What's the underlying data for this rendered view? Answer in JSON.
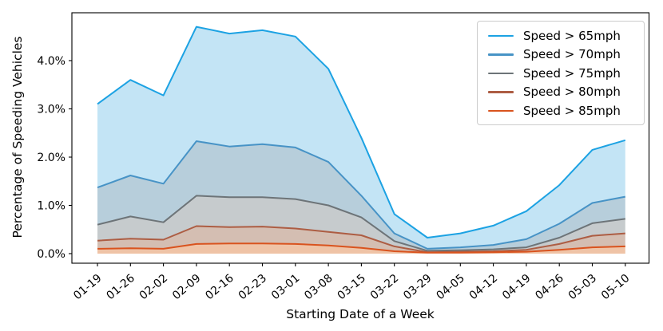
{
  "figure": {
    "background": "#ffffff",
    "axis_color": "#000000",
    "legend_border_color": "#cccccc"
  },
  "chart_data": {
    "type": "area",
    "title": "",
    "xlabel": "Starting Date of a Week",
    "ylabel": "Percentage of Speeding Vehicles",
    "categories": [
      "01-19",
      "01-26",
      "02-02",
      "02-09",
      "02-16",
      "02-23",
      "03-01",
      "03-08",
      "03-15",
      "03-22",
      "03-29",
      "04-05",
      "04-12",
      "04-19",
      "04-26",
      "05-03",
      "05-10"
    ],
    "series": [
      {
        "name": "Speed > 65mph",
        "color": "#1ca2e3",
        "band_fill": "#c3e4f5",
        "values": [
          3.1,
          3.6,
          3.28,
          4.7,
          4.56,
          4.63,
          4.5,
          3.83,
          2.4,
          0.82,
          0.33,
          0.42,
          0.58,
          0.88,
          1.42,
          2.15,
          2.35
        ]
      },
      {
        "name": "Speed > 70mph",
        "color": "#4793c6",
        "band_fill": "#b7cedb",
        "values": [
          1.37,
          1.62,
          1.45,
          2.33,
          2.22,
          2.27,
          2.2,
          1.9,
          1.2,
          0.42,
          0.1,
          0.13,
          0.18,
          0.3,
          0.62,
          1.05,
          1.18
        ]
      },
      {
        "name": "Speed > 75mph",
        "color": "#6d7478",
        "band_fill": "#c6cbcd",
        "values": [
          0.6,
          0.77,
          0.65,
          1.2,
          1.17,
          1.17,
          1.13,
          1.0,
          0.75,
          0.26,
          0.06,
          0.07,
          0.09,
          0.13,
          0.33,
          0.63,
          0.72
        ]
      },
      {
        "name": "Speed > 80mph",
        "color": "#ad5d43",
        "band_fill": "#d4beb2",
        "values": [
          0.27,
          0.31,
          0.29,
          0.57,
          0.55,
          0.56,
          0.52,
          0.45,
          0.38,
          0.15,
          0.03,
          0.04,
          0.05,
          0.08,
          0.2,
          0.37,
          0.42
        ]
      },
      {
        "name": "Speed > 85mph",
        "color": "#d9531e",
        "band_fill": "#efc3a6",
        "values": [
          0.1,
          0.11,
          0.1,
          0.2,
          0.21,
          0.21,
          0.2,
          0.17,
          0.12,
          0.05,
          0.02,
          0.02,
          0.03,
          0.04,
          0.08,
          0.13,
          0.15
        ]
      }
    ],
    "ytick_values": [
      0,
      1,
      2,
      3,
      4
    ],
    "ytick_labels": [
      "0.0%",
      "1.0%",
      "2.0%",
      "3.0%",
      "4.0%"
    ],
    "ylim": [
      -0.2,
      5.0
    ],
    "grid": false,
    "legend_position": "upper right"
  }
}
